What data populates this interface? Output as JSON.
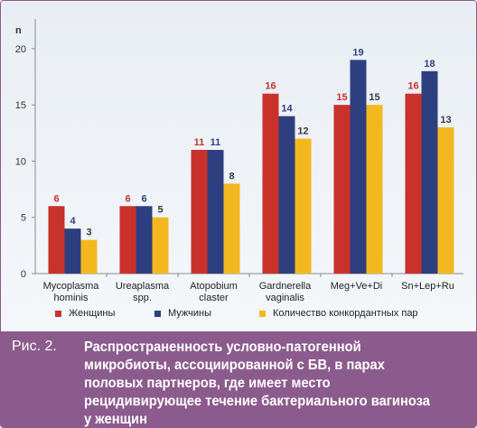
{
  "chart_data": {
    "type": "bar",
    "ylabel": "n",
    "ylim": [
      0,
      22
    ],
    "yticks": [
      0,
      5,
      10,
      15,
      20
    ],
    "grid": false,
    "legend_position": "bottom",
    "categories": [
      [
        "Mycoplasma",
        "hominis"
      ],
      [
        "Ureaplasma",
        "spp."
      ],
      [
        "Atopobium",
        "claster"
      ],
      [
        "Gardnerella",
        "vaginalis"
      ],
      [
        "Meg+Ve+Di"
      ],
      [
        "Sn+Lep+Ru"
      ]
    ],
    "series": [
      {
        "name": "Женщины",
        "color": "#c8322a",
        "label_color": "#c8322a",
        "values": [
          6,
          6,
          11,
          16,
          15,
          16
        ]
      },
      {
        "name": "Мужчины",
        "color": "#2e3f7f",
        "label_color": "#2e3f7f",
        "values": [
          4,
          6,
          11,
          14,
          19,
          18
        ]
      },
      {
        "name": "Количество конкордантных пар",
        "color": "#f3b81f",
        "label_color": "#3a3a3a",
        "values": [
          3,
          5,
          8,
          12,
          15,
          13
        ]
      }
    ]
  },
  "caption": {
    "prefix": "Рис. 2.",
    "text": "Распространенность условно-патогенной микробиоты, ассоциированной с БВ, в парах половых партнеров, где имеет место рецидивирующее течение бактериального вагиноза у женщин"
  }
}
